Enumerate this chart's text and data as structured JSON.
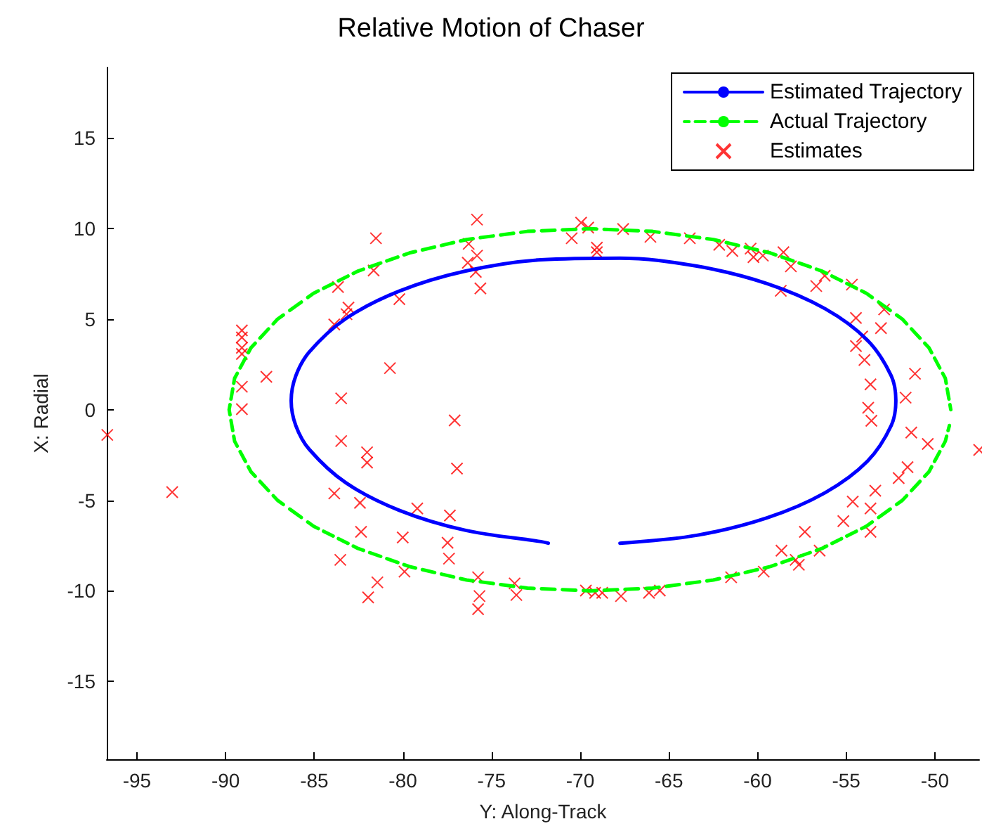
{
  "chart_data": {
    "type": "line",
    "title": "Relative Motion of Chaser",
    "xlabel": "Y: Along-Track",
    "ylabel": "X: Radial",
    "xlim": [
      -96.7,
      -47.5
    ],
    "ylim": [
      -19.3,
      18.9
    ],
    "xticks": [
      -95,
      -90,
      -85,
      -80,
      -75,
      -70,
      -65,
      -60,
      -55,
      -50
    ],
    "yticks": [
      -15,
      -10,
      -5,
      0,
      5,
      10,
      15
    ],
    "legend": "top right",
    "grid": false,
    "series": [
      {
        "name": "Estimated Trajectory",
        "color": "#0000ff",
        "line_style": "solid",
        "marker": "none",
        "x": [
          -67.76,
          -63.42,
          -59.47,
          -56.19,
          -53.8,
          -52.46,
          -52.2,
          -52.46,
          -53.8,
          -56.19,
          -59.47,
          -63.42,
          -67.76,
          -72.21,
          -76.46,
          -80.21,
          -83.22,
          -85.27,
          -86.04,
          -86.3,
          -86.04,
          -85.27,
          -83.22,
          -80.21,
          -76.46,
          -72.21,
          -71.8
        ],
        "values": [
          -7.37,
          -6.93,
          -5.97,
          -4.58,
          -2.84,
          -0.87,
          0.5,
          1.87,
          3.84,
          5.58,
          6.97,
          7.93,
          8.37,
          8.28,
          7.66,
          6.55,
          5.03,
          3.2,
          1.87,
          0.5,
          -0.87,
          -2.2,
          -4.03,
          -5.55,
          -6.66,
          -7.28,
          -7.37
        ]
      },
      {
        "name": "Actual Trajectory",
        "color": "#00ff00",
        "line_style": "dashed",
        "marker": "none",
        "x": [
          -49.1,
          -49.41,
          -50.33,
          -51.83,
          -53.86,
          -56.37,
          -59.28,
          -62.49,
          -65.92,
          -69.45,
          -72.98,
          -76.41,
          -79.63,
          -82.53,
          -85.04,
          -87.07,
          -88.57,
          -89.49,
          -89.8,
          -89.49,
          -88.57,
          -87.07,
          -85.04,
          -82.53,
          -79.63,
          -76.41,
          -72.98,
          -69.45,
          -65.92,
          -62.49,
          -59.28,
          -56.37,
          -53.86,
          -51.83,
          -50.33,
          -49.41,
          -49.18
        ],
        "values": [
          0,
          1.74,
          3.42,
          5.0,
          6.43,
          7.66,
          8.66,
          9.4,
          9.85,
          10,
          9.85,
          9.4,
          8.66,
          7.66,
          6.43,
          5.0,
          3.42,
          1.74,
          0,
          -1.74,
          -3.42,
          -5.0,
          -6.43,
          -7.66,
          -8.66,
          -9.4,
          -9.85,
          -10,
          -9.85,
          -9.4,
          -8.66,
          -7.66,
          -6.43,
          -5.0,
          -3.42,
          -1.74,
          -0.87
        ]
      },
      {
        "name": "Estimates",
        "type": "scatter",
        "color": "#ff0000",
        "marker": "cross",
        "x": [
          -96.67,
          -93.01,
          -89.08,
          -89.08,
          -89.08,
          -89.08,
          -89.08,
          -89.08,
          -87.7,
          -81.52,
          -81.65,
          -83.66,
          -83.07,
          -83.18,
          -83.87,
          -80.2,
          -80.73,
          -83.48,
          -83.48,
          -82.02,
          -82.02,
          -83.87,
          -82.42,
          -79.19,
          -82.36,
          -80.01,
          -83.53,
          -79.91,
          -81.44,
          -81.96,
          -75.82,
          -76.29,
          -75.82,
          -76.34,
          -75.89,
          -75.63,
          -77.08,
          -76.95,
          -77.35,
          -77.48,
          -77.4,
          -75.76,
          -75.68,
          -75.76,
          -73.7,
          -73.6,
          -69.95,
          -69.55,
          -70.48,
          -69.06,
          -69.06,
          -67.58,
          -66.04,
          -69.68,
          -69.16,
          -68.76,
          -67.7,
          -66.12,
          -65.51,
          -63.82,
          -62.16,
          -61.42,
          -60.39,
          -60.23,
          -59.7,
          -58.54,
          -58.12,
          -56.21,
          -56.69,
          -54.68,
          -58.69,
          -52.86,
          -54.45,
          -53.04,
          -54.1,
          -54.45,
          -53.97,
          -51.12,
          -53.63,
          -51.65,
          -53.76,
          -53.58,
          -51.33,
          -50.4,
          -47.5,
          -51.54,
          -52.04,
          -53.36,
          -54.63,
          -53.63,
          -55.16,
          -53.63,
          -57.33,
          -58.65,
          -56.5,
          -57.85,
          -57.67,
          -59.65,
          -61.49
        ],
        "values": [
          -1.39,
          -4.55,
          4.38,
          3.99,
          3.42,
          3.08,
          1.27,
          0.03,
          1.82,
          9.47,
          7.69,
          6.78,
          5.64,
          5.28,
          4.71,
          6.11,
          2.3,
          0.63,
          -1.73,
          -2.35,
          -2.92,
          -4.62,
          -5.14,
          -5.45,
          -6.74,
          -7.05,
          -8.29,
          -8.94,
          -9.53,
          -10.36,
          10.5,
          9.16,
          8.51,
          8.12,
          7.61,
          6.7,
          -0.59,
          -3.25,
          -5.84,
          -7.34,
          -8.22,
          -9.25,
          -10.29,
          -11.01,
          -9.59,
          -10.23,
          10.33,
          10.06,
          9.47,
          8.95,
          8.7,
          9.98,
          9.55,
          -9.98,
          -10.11,
          -10.11,
          -10.29,
          -10.11,
          -9.98,
          9.47,
          9.11,
          8.77,
          8.9,
          8.43,
          8.51,
          8.7,
          7.92,
          7.4,
          6.83,
          6.91,
          6.57,
          5.54,
          5.07,
          4.51,
          4.04,
          3.52,
          2.75,
          1.99,
          1.4,
          0.67,
          0.11,
          -0.61,
          -1.26,
          -1.89,
          -2.22,
          -3.17,
          -3.77,
          -4.47,
          -5.07,
          -5.45,
          -6.15,
          -6.74,
          -6.74,
          -7.78,
          -7.78,
          -8.29,
          -8.56,
          -8.94,
          -9.25
        ]
      }
    ]
  }
}
